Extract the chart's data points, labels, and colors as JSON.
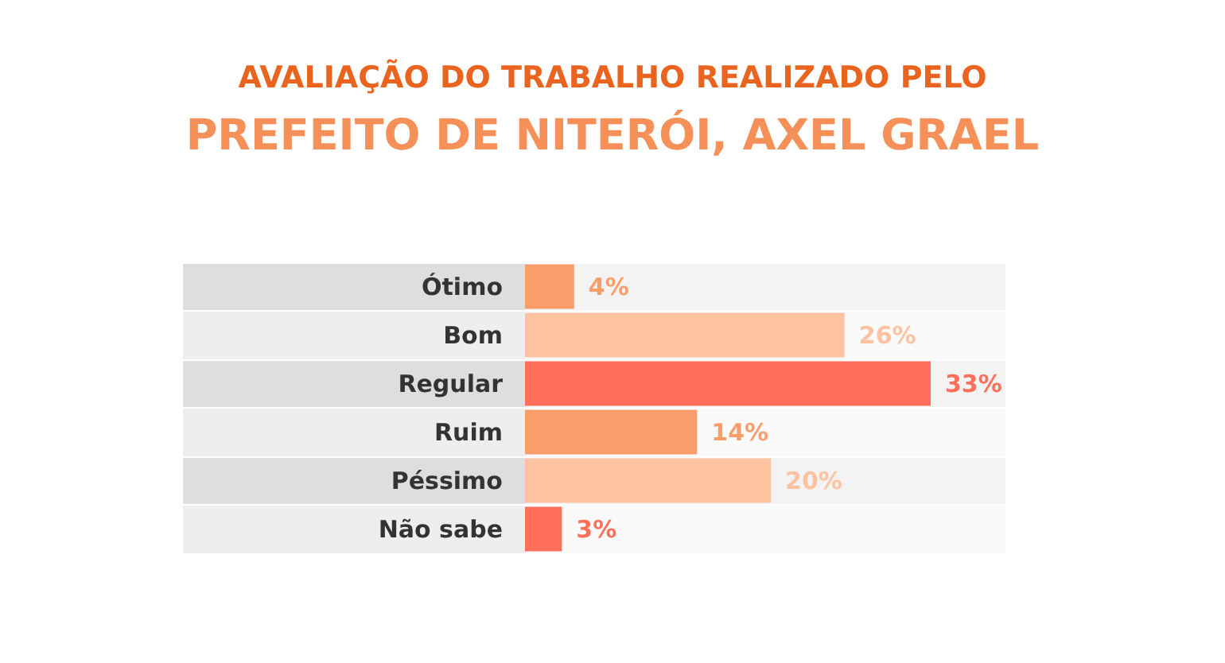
{
  "chart_data": {
    "type": "bar",
    "orientation": "horizontal",
    "title": "AVALIAÇÃO DO TRABALHO REALIZADO PELO",
    "subtitle": "PREFEITO DE NITERÓI, AXEL GRAEL",
    "categories": [
      "Ótimo",
      "Bom",
      "Regular",
      "Ruim",
      "Péssimo",
      "Não sabe"
    ],
    "values": [
      4,
      26,
      33,
      14,
      20,
      3
    ],
    "colors": [
      "#fb9d6b",
      "#fdc3a0",
      "#ff6f5a",
      "#fb9d6b",
      "#fdc3a0",
      "#ff6f5a"
    ],
    "value_labels": [
      "4%",
      "26%",
      "33%",
      "14%",
      "20%",
      "3%"
    ],
    "grid": false,
    "legend": false
  }
}
